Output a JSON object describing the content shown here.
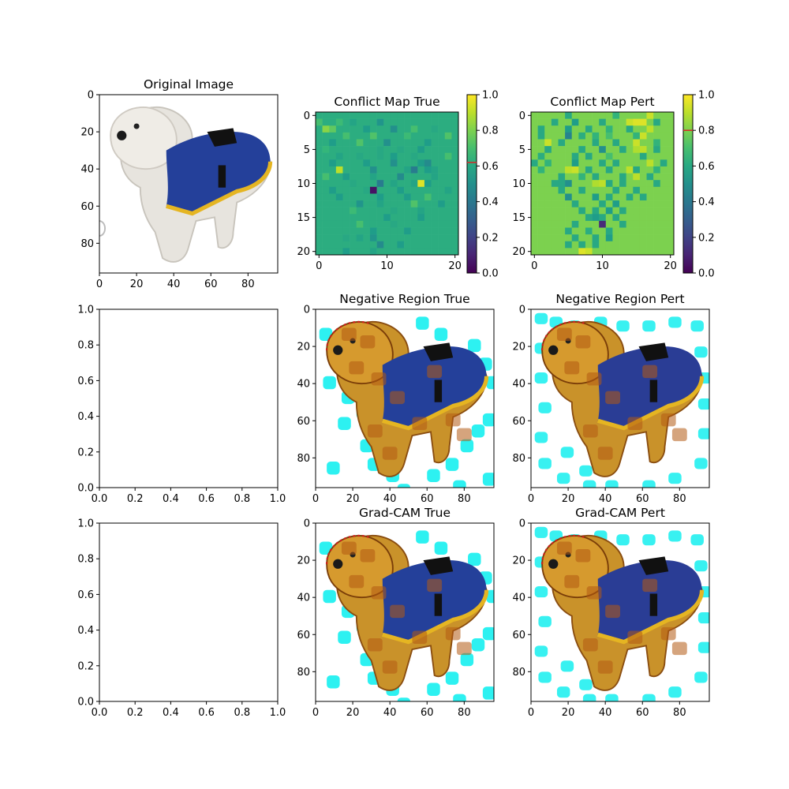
{
  "chart_data": [
    {
      "id": "original",
      "type": "image",
      "title": "Original Image",
      "xticks": [
        0,
        20,
        40,
        60,
        80
      ],
      "yticks": [
        0,
        20,
        40,
        60,
        80
      ],
      "extent": [
        96,
        96
      ],
      "content": "white fluffy dog wearing a blue coat with yellow trim"
    },
    {
      "id": "conflict_true",
      "type": "heatmap",
      "title": "Conflict Map True",
      "grid_size": [
        21,
        21
      ],
      "xticks": [
        0,
        10,
        20
      ],
      "yticks": [
        0,
        5,
        10,
        15,
        20
      ],
      "colormap": "viridis",
      "colorbar_ticks": [
        0.0,
        0.2,
        0.4,
        0.6,
        0.8,
        1.0
      ],
      "colorbar_ticklabels": [
        "0.0",
        "0.2",
        "0.4",
        "0.6",
        "0.8",
        "1.0"
      ],
      "vlim": [
        0,
        1
      ],
      "marker_value": 0.62,
      "base_value": 0.62,
      "outliers": [
        [
          1,
          0,
          0.7
        ],
        [
          1,
          3,
          0.68
        ],
        [
          1,
          5,
          0.58
        ],
        [
          1,
          9,
          0.52
        ],
        [
          2,
          1,
          0.82
        ],
        [
          2,
          2,
          0.75
        ],
        [
          2,
          7,
          0.55
        ],
        [
          2,
          11,
          0.5
        ],
        [
          2,
          14,
          0.7
        ],
        [
          2,
          17,
          0.6
        ],
        [
          3,
          4,
          0.7
        ],
        [
          3,
          8,
          0.72
        ],
        [
          3,
          13,
          0.68
        ],
        [
          3,
          19,
          0.72
        ],
        [
          4,
          2,
          0.55
        ],
        [
          4,
          6,
          0.72
        ],
        [
          4,
          10,
          0.5
        ],
        [
          4,
          16,
          0.55
        ],
        [
          5,
          1,
          0.66
        ],
        [
          5,
          9,
          0.6
        ],
        [
          5,
          12,
          0.6
        ],
        [
          5,
          15,
          0.55
        ],
        [
          6,
          3,
          0.58
        ],
        [
          6,
          6,
          0.6
        ],
        [
          6,
          9,
          0.6
        ],
        [
          6,
          11,
          0.55
        ],
        [
          6,
          14,
          0.6
        ],
        [
          6,
          19,
          0.7
        ],
        [
          7,
          2,
          0.55
        ],
        [
          7,
          7,
          0.55
        ],
        [
          7,
          11,
          0.5
        ],
        [
          7,
          15,
          0.55
        ],
        [
          7,
          16,
          0.48
        ],
        [
          8,
          3,
          0.9
        ],
        [
          8,
          8,
          0.5
        ],
        [
          8,
          13,
          0.58
        ],
        [
          8,
          14,
          0.42
        ],
        [
          8,
          16,
          0.55
        ],
        [
          8,
          17,
          0.58
        ],
        [
          9,
          1,
          0.7
        ],
        [
          9,
          4,
          0.55
        ],
        [
          9,
          8,
          0.58
        ],
        [
          9,
          12,
          0.48
        ],
        [
          9,
          17,
          0.58
        ],
        [
          10,
          5,
          0.6
        ],
        [
          10,
          9,
          0.42
        ],
        [
          10,
          11,
          0.58
        ],
        [
          10,
          14,
          0.58
        ],
        [
          10,
          15,
          0.95
        ],
        [
          10,
          16,
          0.55
        ],
        [
          11,
          2,
          0.55
        ],
        [
          11,
          7,
          0.6
        ],
        [
          11,
          8,
          0.05
        ],
        [
          11,
          12,
          0.55
        ],
        [
          11,
          19,
          0.58
        ],
        [
          12,
          3,
          0.55
        ],
        [
          12,
          9,
          0.55
        ],
        [
          12,
          13,
          0.55
        ],
        [
          12,
          16,
          0.7
        ],
        [
          13,
          6,
          0.52
        ],
        [
          13,
          9,
          0.58
        ],
        [
          13,
          14,
          0.72
        ],
        [
          13,
          18,
          0.55
        ],
        [
          14,
          5,
          0.68
        ],
        [
          14,
          11,
          0.6
        ],
        [
          14,
          15,
          0.58
        ],
        [
          15,
          10,
          0.55
        ],
        [
          15,
          15,
          0.55
        ],
        [
          16,
          6,
          0.7
        ],
        [
          16,
          11,
          0.6
        ],
        [
          17,
          8,
          0.55
        ],
        [
          17,
          13,
          0.55
        ],
        [
          18,
          4,
          0.6
        ],
        [
          18,
          6,
          0.58
        ],
        [
          18,
          8,
          0.52
        ],
        [
          19,
          9,
          0.48
        ],
        [
          19,
          12,
          0.55
        ],
        [
          20,
          4,
          0.55
        ],
        [
          20,
          8,
          0.58
        ]
      ]
    },
    {
      "id": "conflict_pert",
      "type": "heatmap",
      "title": "Conflict Map Pert",
      "grid_size": [
        21,
        21
      ],
      "xticks": [
        0,
        10,
        20
      ],
      "yticks": [
        0,
        5,
        10,
        15,
        20
      ],
      "colormap": "viridis",
      "colorbar_ticks": [
        0.0,
        0.2,
        0.4,
        0.6,
        0.8,
        1.0
      ],
      "colorbar_ticklabels": [
        "0.0",
        "0.2",
        "0.4",
        "0.6",
        "0.8",
        "1.0"
      ],
      "vlim": [
        0,
        1
      ],
      "marker_value": 0.8,
      "base_value": 0.8,
      "outliers": [
        [
          0,
          5,
          0.6
        ],
        [
          0,
          12,
          0.65
        ],
        [
          0,
          17,
          0.92
        ],
        [
          1,
          3,
          0.6
        ],
        [
          1,
          6,
          0.55
        ],
        [
          1,
          10,
          0.6
        ],
        [
          1,
          14,
          0.92
        ],
        [
          1,
          15,
          0.95
        ],
        [
          1,
          16,
          0.95
        ],
        [
          1,
          18,
          0.6
        ],
        [
          2,
          1,
          0.6
        ],
        [
          2,
          5,
          0.55
        ],
        [
          2,
          8,
          0.6
        ],
        [
          2,
          11,
          0.65
        ],
        [
          2,
          14,
          0.6
        ],
        [
          2,
          17,
          0.9
        ],
        [
          3,
          1,
          0.6
        ],
        [
          3,
          5,
          0.45
        ],
        [
          3,
          7,
          0.62
        ],
        [
          3,
          9,
          0.65
        ],
        [
          3,
          11,
          0.7
        ],
        [
          3,
          15,
          0.65
        ],
        [
          3,
          16,
          0.92
        ],
        [
          4,
          2,
          0.92
        ],
        [
          4,
          4,
          0.6
        ],
        [
          4,
          9,
          0.6
        ],
        [
          4,
          12,
          0.6
        ],
        [
          4,
          15,
          0.92
        ],
        [
          4,
          18,
          0.65
        ],
        [
          5,
          2,
          0.6
        ],
        [
          5,
          7,
          0.6
        ],
        [
          5,
          10,
          0.5
        ],
        [
          5,
          13,
          0.6
        ],
        [
          5,
          15,
          0.88
        ],
        [
          5,
          16,
          0.9
        ],
        [
          5,
          18,
          0.6
        ],
        [
          6,
          1,
          0.62
        ],
        [
          6,
          6,
          0.6
        ],
        [
          6,
          8,
          0.6
        ],
        [
          6,
          11,
          0.7
        ],
        [
          6,
          16,
          0.6
        ],
        [
          7,
          0,
          0.6
        ],
        [
          7,
          2,
          0.65
        ],
        [
          7,
          6,
          0.55
        ],
        [
          7,
          10,
          0.6
        ],
        [
          7,
          12,
          0.6
        ],
        [
          7,
          17,
          0.9
        ],
        [
          7,
          19,
          0.6
        ],
        [
          8,
          1,
          0.65
        ],
        [
          8,
          5,
          0.9
        ],
        [
          8,
          6,
          0.92
        ],
        [
          8,
          8,
          0.6
        ],
        [
          8,
          11,
          0.6
        ],
        [
          8,
          14,
          0.9
        ],
        [
          8,
          15,
          0.6
        ],
        [
          8,
          18,
          0.65
        ],
        [
          9,
          4,
          0.6
        ],
        [
          9,
          7,
          0.65
        ],
        [
          9,
          9,
          0.6
        ],
        [
          9,
          13,
          0.6
        ],
        [
          9,
          15,
          0.9
        ],
        [
          9,
          17,
          0.6
        ],
        [
          10,
          3,
          0.6
        ],
        [
          10,
          4,
          0.6
        ],
        [
          10,
          5,
          0.5
        ],
        [
          10,
          9,
          0.88
        ],
        [
          10,
          10,
          0.9
        ],
        [
          10,
          11,
          0.6
        ],
        [
          10,
          13,
          0.6
        ],
        [
          10,
          18,
          0.6
        ],
        [
          11,
          4,
          0.6
        ],
        [
          11,
          7,
          0.6
        ],
        [
          11,
          12,
          0.6
        ],
        [
          11,
          15,
          0.6
        ],
        [
          12,
          5,
          0.5
        ],
        [
          12,
          9,
          0.55
        ],
        [
          12,
          11,
          0.6
        ],
        [
          12,
          14,
          0.6
        ],
        [
          12,
          16,
          0.6
        ],
        [
          13,
          6,
          0.6
        ],
        [
          13,
          10,
          0.6
        ],
        [
          13,
          12,
          0.55
        ],
        [
          14,
          7,
          0.6
        ],
        [
          14,
          9,
          0.6
        ],
        [
          14,
          11,
          0.55
        ],
        [
          14,
          13,
          0.6
        ],
        [
          15,
          8,
          0.6
        ],
        [
          15,
          9,
          0.55
        ],
        [
          15,
          10,
          0.6
        ],
        [
          15,
          12,
          0.6
        ],
        [
          16,
          6,
          0.6
        ],
        [
          16,
          10,
          0.12
        ],
        [
          16,
          13,
          0.6
        ],
        [
          17,
          5,
          0.6
        ],
        [
          17,
          8,
          0.62
        ],
        [
          17,
          11,
          0.6
        ],
        [
          18,
          6,
          0.6
        ],
        [
          18,
          9,
          0.6
        ],
        [
          18,
          11,
          0.55
        ],
        [
          19,
          5,
          0.6
        ],
        [
          19,
          7,
          0.6
        ],
        [
          19,
          9,
          0.6
        ],
        [
          20,
          7,
          0.95
        ],
        [
          20,
          8,
          0.92
        ]
      ]
    },
    {
      "id": "empty_1",
      "type": "empty",
      "xticks": [
        0.0,
        0.2,
        0.4,
        0.6,
        0.8,
        1.0
      ],
      "yticks": [
        0.0,
        0.2,
        0.4,
        0.6,
        0.8,
        1.0
      ],
      "xticklabels": [
        "0.0",
        "0.2",
        "0.4",
        "0.6",
        "0.8",
        "1.0"
      ],
      "yticklabels": [
        "0.0",
        "0.2",
        "0.4",
        "0.6",
        "0.8",
        "1.0"
      ],
      "xlim": [
        0,
        1
      ],
      "ylim": [
        0,
        1
      ]
    },
    {
      "id": "neg_true",
      "type": "image",
      "title": "Negative Region True",
      "xticks": [
        0,
        20,
        40,
        60,
        80
      ],
      "yticks": [
        0,
        20,
        40,
        60,
        80
      ],
      "extent": [
        96,
        96
      ],
      "content": "dog image overlaid with orange heatmap patches and cyan background highlights"
    },
    {
      "id": "neg_pert",
      "type": "image",
      "title": "Negative Region Pert",
      "xticks": [
        0,
        20,
        40,
        60,
        80
      ],
      "yticks": [
        0,
        20,
        40,
        60,
        80
      ],
      "extent": [
        96,
        96
      ],
      "content": "dog image overlaid with orange heatmap patches and cyan background highlights"
    },
    {
      "id": "empty_2",
      "type": "empty",
      "xticks": [
        0.0,
        0.2,
        0.4,
        0.6,
        0.8,
        1.0
      ],
      "yticks": [
        0.0,
        0.2,
        0.4,
        0.6,
        0.8,
        1.0
      ],
      "xticklabels": [
        "0.0",
        "0.2",
        "0.4",
        "0.6",
        "0.8",
        "1.0"
      ],
      "yticklabels": [
        "0.0",
        "0.2",
        "0.4",
        "0.6",
        "0.8",
        "1.0"
      ],
      "xlim": [
        0,
        1
      ],
      "ylim": [
        0,
        1
      ]
    },
    {
      "id": "gradcam_true",
      "type": "image",
      "title": "Grad-CAM True",
      "xticks": [
        0,
        20,
        40,
        60,
        80
      ],
      "yticks": [
        0,
        20,
        40,
        60,
        80
      ],
      "extent": [
        96,
        96
      ],
      "content": "dog image overlaid with orange Grad-CAM heatmap and cyan background highlights"
    },
    {
      "id": "gradcam_pert",
      "type": "image",
      "title": "Grad-CAM Pert",
      "xticks": [
        0,
        20,
        40,
        60,
        80
      ],
      "yticks": [
        0,
        20,
        40,
        60,
        80
      ],
      "extent": [
        96,
        96
      ],
      "content": "dog image overlaid with orange Grad-CAM heatmap and cyan background highlights"
    }
  ]
}
